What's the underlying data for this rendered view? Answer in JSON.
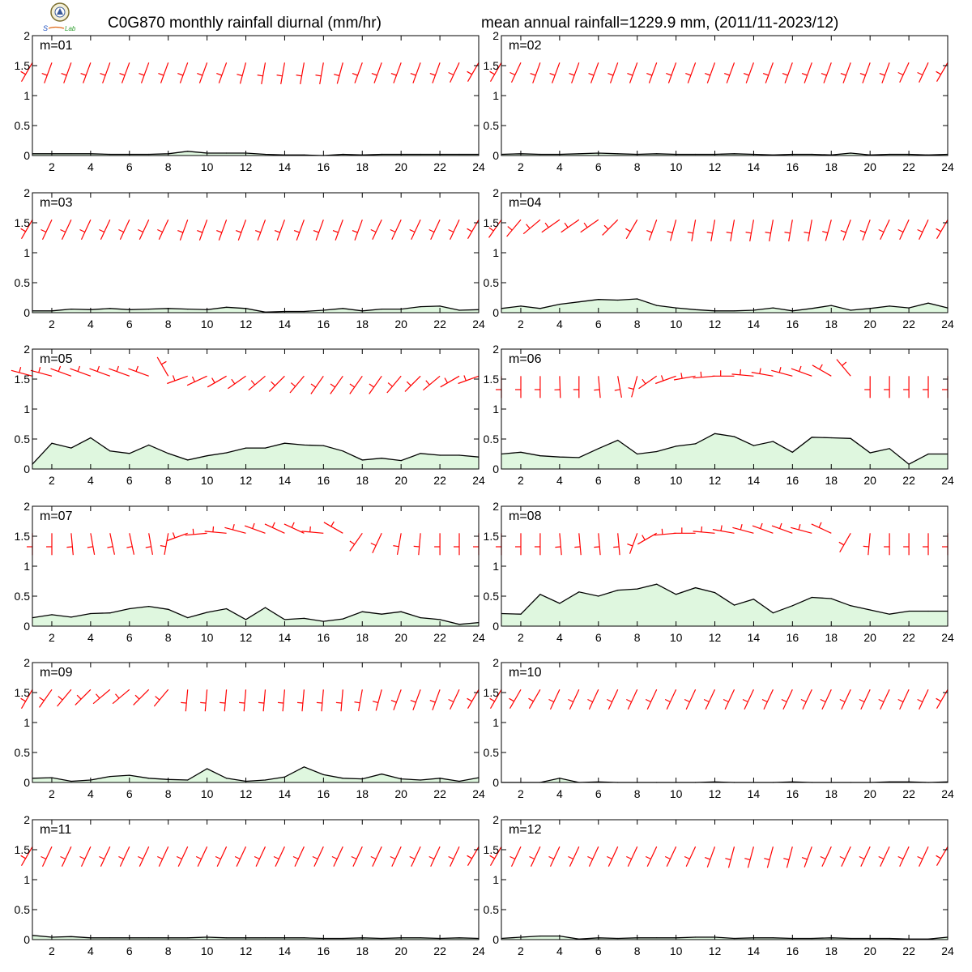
{
  "title_left": "C0G870 monthly rainfall diurnal (mm/hr)",
  "title_right": "mean annual rainfall=1229.9 mm, (2011/11-2023/12)",
  "logo_text": "Lab",
  "colors": {
    "line": "#000000",
    "fill": "#dff7df",
    "barb": "#ff0000",
    "axis": "#000000"
  },
  "chart_data": [
    {
      "type": "area",
      "label": "m=01",
      "x": [
        1,
        2,
        3,
        4,
        5,
        6,
        7,
        8,
        9,
        10,
        11,
        12,
        13,
        14,
        15,
        16,
        17,
        18,
        19,
        20,
        21,
        22,
        23,
        24
      ],
      "ylim": [
        0,
        2
      ],
      "yticks": [
        0,
        0.5,
        1,
        1.5,
        2
      ],
      "xticks": [
        2,
        4,
        6,
        8,
        10,
        12,
        14,
        16,
        18,
        20,
        22,
        24
      ],
      "values": [
        0.03,
        0.03,
        0.03,
        0.03,
        0.02,
        0.02,
        0.02,
        0.03,
        0.07,
        0.04,
        0.04,
        0.04,
        0.02,
        0.01,
        0.01,
        0.0,
        0.02,
        0.01,
        0.02,
        0.02,
        0.02,
        0.02,
        0.02,
        0.02
      ],
      "wind_dir": [
        210,
        200,
        200,
        200,
        200,
        200,
        200,
        200,
        200,
        200,
        200,
        195,
        190,
        190,
        190,
        190,
        195,
        200,
        200,
        200,
        200,
        200,
        205,
        210
      ]
    },
    {
      "type": "area",
      "label": "m=02",
      "x": [
        1,
        2,
        3,
        4,
        5,
        6,
        7,
        8,
        9,
        10,
        11,
        12,
        13,
        14,
        15,
        16,
        17,
        18,
        19,
        20,
        21,
        22,
        23,
        24
      ],
      "ylim": [
        0,
        2
      ],
      "yticks": [
        0,
        0.5,
        1,
        1.5,
        2
      ],
      "xticks": [
        2,
        4,
        6,
        8,
        10,
        12,
        14,
        16,
        18,
        20,
        22,
        24
      ],
      "values": [
        0.02,
        0.03,
        0.02,
        0.02,
        0.03,
        0.04,
        0.03,
        0.02,
        0.03,
        0.02,
        0.02,
        0.02,
        0.03,
        0.02,
        0.01,
        0.02,
        0.02,
        0.01,
        0.04,
        0.01,
        0.02,
        0.02,
        0.01,
        0.02
      ],
      "wind_dir": [
        210,
        205,
        200,
        200,
        200,
        200,
        200,
        200,
        200,
        200,
        200,
        200,
        200,
        200,
        200,
        200,
        200,
        200,
        200,
        200,
        200,
        205,
        205,
        210
      ]
    },
    {
      "type": "area",
      "label": "m=03",
      "x": [
        1,
        2,
        3,
        4,
        5,
        6,
        7,
        8,
        9,
        10,
        11,
        12,
        13,
        14,
        15,
        16,
        17,
        18,
        19,
        20,
        21,
        22,
        23,
        24
      ],
      "ylim": [
        0,
        2
      ],
      "yticks": [
        0,
        0.5,
        1,
        1.5,
        2
      ],
      "xticks": [
        2,
        4,
        6,
        8,
        10,
        12,
        14,
        16,
        18,
        20,
        22,
        24
      ],
      "values": [
        0.03,
        0.03,
        0.06,
        0.05,
        0.07,
        0.05,
        0.06,
        0.07,
        0.06,
        0.05,
        0.09,
        0.07,
        0.01,
        0.02,
        0.02,
        0.04,
        0.07,
        0.03,
        0.06,
        0.06,
        0.1,
        0.11,
        0.04,
        0.05
      ],
      "wind_dir": [
        210,
        205,
        205,
        205,
        205,
        205,
        205,
        205,
        200,
        200,
        200,
        200,
        200,
        200,
        200,
        200,
        200,
        200,
        205,
        205,
        205,
        205,
        205,
        210
      ]
    },
    {
      "type": "area",
      "label": "m=04",
      "x": [
        1,
        2,
        3,
        4,
        5,
        6,
        7,
        8,
        9,
        10,
        11,
        12,
        13,
        14,
        15,
        16,
        17,
        18,
        19,
        20,
        21,
        22,
        23,
        24
      ],
      "ylim": [
        0,
        2
      ],
      "yticks": [
        0,
        0.5,
        1,
        1.5,
        2
      ],
      "xticks": [
        2,
        4,
        6,
        8,
        10,
        12,
        14,
        16,
        18,
        20,
        22,
        24
      ],
      "values": [
        0.07,
        0.11,
        0.07,
        0.14,
        0.18,
        0.22,
        0.21,
        0.23,
        0.12,
        0.08,
        0.05,
        0.03,
        0.03,
        0.04,
        0.08,
        0.03,
        0.07,
        0.12,
        0.04,
        0.07,
        0.11,
        0.08,
        0.16,
        0.08
      ],
      "wind_dir": [
        215,
        220,
        230,
        235,
        235,
        235,
        225,
        210,
        200,
        195,
        190,
        190,
        190,
        190,
        190,
        190,
        190,
        195,
        200,
        200,
        205,
        205,
        205,
        210
      ]
    },
    {
      "type": "area",
      "label": "m=05",
      "x": [
        1,
        2,
        3,
        4,
        5,
        6,
        7,
        8,
        9,
        10,
        11,
        12,
        13,
        14,
        15,
        16,
        17,
        18,
        19,
        20,
        21,
        22,
        23,
        24
      ],
      "ylim": [
        0,
        2
      ],
      "yticks": [
        0,
        0.5,
        1,
        1.5,
        2
      ],
      "xticks": [
        2,
        4,
        6,
        8,
        10,
        12,
        14,
        16,
        18,
        20,
        22,
        24
      ],
      "values": [
        0.08,
        0.43,
        0.35,
        0.52,
        0.3,
        0.26,
        0.4,
        0.26,
        0.15,
        0.22,
        0.27,
        0.35,
        0.35,
        0.43,
        0.4,
        0.39,
        0.3,
        0.15,
        0.18,
        0.14,
        0.26,
        0.23,
        0.23,
        0.2
      ],
      "wind_dir": [
        285,
        285,
        290,
        290,
        290,
        290,
        290,
        330,
        250,
        245,
        240,
        235,
        230,
        225,
        220,
        215,
        215,
        215,
        215,
        220,
        225,
        230,
        240,
        250
      ]
    },
    {
      "type": "area",
      "label": "m=06",
      "x": [
        1,
        2,
        3,
        4,
        5,
        6,
        7,
        8,
        9,
        10,
        11,
        12,
        13,
        14,
        15,
        16,
        17,
        18,
        19,
        20,
        21,
        22,
        23,
        24
      ],
      "ylim": [
        0,
        2
      ],
      "yticks": [
        0,
        0.5,
        1,
        1.5,
        2
      ],
      "xticks": [
        2,
        4,
        6,
        8,
        10,
        12,
        14,
        16,
        18,
        20,
        22,
        24
      ],
      "values": [
        0.25,
        0.28,
        0.22,
        0.2,
        0.19,
        0.34,
        0.48,
        0.25,
        0.29,
        0.38,
        0.42,
        0.59,
        0.54,
        0.39,
        0.46,
        0.28,
        0.53,
        0.52,
        0.51,
        0.27,
        0.34,
        0.08,
        0.25,
        0.25
      ],
      "wind_dir": [
        180,
        180,
        180,
        178,
        180,
        175,
        170,
        195,
        235,
        250,
        260,
        265,
        270,
        275,
        280,
        285,
        290,
        300,
        320,
        180,
        180,
        180,
        180,
        180
      ],
      "note": "first barb small"
    },
    {
      "type": "area",
      "label": "m=07",
      "x": [
        1,
        2,
        3,
        4,
        5,
        6,
        7,
        8,
        9,
        10,
        11,
        12,
        13,
        14,
        15,
        16,
        17,
        18,
        19,
        20,
        21,
        22,
        23,
        24
      ],
      "ylim": [
        0,
        2
      ],
      "yticks": [
        0,
        0.5,
        1,
        1.5,
        2
      ],
      "xticks": [
        2,
        4,
        6,
        8,
        10,
        12,
        14,
        16,
        18,
        20,
        22,
        24
      ],
      "values": [
        0.14,
        0.19,
        0.15,
        0.21,
        0.22,
        0.29,
        0.33,
        0.28,
        0.14,
        0.23,
        0.29,
        0.11,
        0.31,
        0.11,
        0.13,
        0.08,
        0.12,
        0.24,
        0.2,
        0.24,
        0.14,
        0.11,
        0.03,
        0.06
      ],
      "wind_dir": [
        180,
        180,
        175,
        170,
        168,
        168,
        170,
        190,
        250,
        265,
        275,
        285,
        290,
        295,
        295,
        275,
        300,
        215,
        205,
        190,
        185,
        180,
        180,
        180
      ]
    },
    {
      "type": "area",
      "label": "m=08",
      "x": [
        1,
        2,
        3,
        4,
        5,
        6,
        7,
        8,
        9,
        10,
        11,
        12,
        13,
        14,
        15,
        16,
        17,
        18,
        19,
        20,
        21,
        22,
        23,
        24
      ],
      "ylim": [
        0,
        2
      ],
      "yticks": [
        0,
        0.5,
        1,
        1.5,
        2
      ],
      "xticks": [
        2,
        4,
        6,
        8,
        10,
        12,
        14,
        16,
        18,
        20,
        22,
        24
      ],
      "values": [
        0.21,
        0.2,
        0.53,
        0.38,
        0.57,
        0.5,
        0.6,
        0.62,
        0.7,
        0.53,
        0.64,
        0.56,
        0.35,
        0.45,
        0.22,
        0.34,
        0.48,
        0.46,
        0.34,
        0.27,
        0.2,
        0.25,
        0.25,
        0.25
      ],
      "wind_dir": [
        180,
        180,
        180,
        175,
        175,
        175,
        175,
        200,
        240,
        265,
        270,
        275,
        280,
        285,
        290,
        290,
        285,
        295,
        210,
        185,
        180,
        180,
        180,
        180
      ]
    },
    {
      "type": "area",
      "label": "m=09",
      "x": [
        1,
        2,
        3,
        4,
        5,
        6,
        7,
        8,
        9,
        10,
        11,
        12,
        13,
        14,
        15,
        16,
        17,
        18,
        19,
        20,
        21,
        22,
        23,
        24
      ],
      "ylim": [
        0,
        2
      ],
      "yticks": [
        0,
        0.5,
        1,
        1.5,
        2
      ],
      "xticks": [
        2,
        4,
        6,
        8,
        10,
        12,
        14,
        16,
        18,
        20,
        22,
        24
      ],
      "values": [
        0.07,
        0.08,
        0.02,
        0.04,
        0.1,
        0.12,
        0.07,
        0.05,
        0.04,
        0.23,
        0.07,
        0.02,
        0.04,
        0.09,
        0.26,
        0.13,
        0.07,
        0.06,
        0.14,
        0.06,
        0.04,
        0.07,
        0.02,
        0.08
      ],
      "wind_dir": [
        210,
        215,
        220,
        225,
        230,
        230,
        225,
        220,
        185,
        185,
        185,
        185,
        185,
        185,
        185,
        185,
        185,
        190,
        195,
        200,
        200,
        200,
        205,
        210
      ]
    },
    {
      "type": "area",
      "label": "m=10",
      "x": [
        1,
        2,
        3,
        4,
        5,
        6,
        7,
        8,
        9,
        10,
        11,
        12,
        13,
        14,
        15,
        16,
        17,
        18,
        19,
        20,
        21,
        22,
        23,
        24
      ],
      "ylim": [
        0,
        2
      ],
      "yticks": [
        0,
        0.5,
        1,
        1.5,
        2
      ],
      "xticks": [
        2,
        4,
        6,
        8,
        10,
        12,
        14,
        16,
        18,
        20,
        22,
        24
      ],
      "values": [
        0.0,
        0.0,
        0.0,
        0.07,
        0.0,
        0.01,
        0.0,
        0.0,
        0.0,
        0.0,
        0.0,
        0.01,
        0.0,
        0.0,
        0.0,
        0.01,
        0.0,
        0.0,
        0.0,
        0.0,
        0.01,
        0.01,
        0.0,
        0.01
      ],
      "wind_dir": [
        210,
        210,
        210,
        205,
        205,
        205,
        205,
        205,
        205,
        205,
        205,
        205,
        205,
        205,
        205,
        205,
        205,
        205,
        205,
        205,
        205,
        205,
        205,
        210
      ]
    },
    {
      "type": "area",
      "label": "m=11",
      "x": [
        1,
        2,
        3,
        4,
        5,
        6,
        7,
        8,
        9,
        10,
        11,
        12,
        13,
        14,
        15,
        16,
        17,
        18,
        19,
        20,
        21,
        22,
        23,
        24
      ],
      "ylim": [
        0,
        2
      ],
      "yticks": [
        0,
        0.5,
        1,
        1.5,
        2
      ],
      "xticks": [
        2,
        4,
        6,
        8,
        10,
        12,
        14,
        16,
        18,
        20,
        22,
        24
      ],
      "values": [
        0.07,
        0.04,
        0.05,
        0.03,
        0.03,
        0.03,
        0.03,
        0.03,
        0.03,
        0.04,
        0.03,
        0.03,
        0.03,
        0.03,
        0.03,
        0.02,
        0.02,
        0.03,
        0.02,
        0.03,
        0.03,
        0.02,
        0.03,
        0.02
      ],
      "wind_dir": [
        210,
        205,
        205,
        205,
        205,
        205,
        205,
        205,
        205,
        205,
        205,
        205,
        205,
        205,
        205,
        205,
        205,
        205,
        205,
        205,
        205,
        205,
        205,
        210
      ]
    },
    {
      "type": "area",
      "label": "m=12",
      "x": [
        1,
        2,
        3,
        4,
        5,
        6,
        7,
        8,
        9,
        10,
        11,
        12,
        13,
        14,
        15,
        16,
        17,
        18,
        19,
        20,
        21,
        22,
        23,
        24
      ],
      "ylim": [
        0,
        2
      ],
      "yticks": [
        0,
        0.5,
        1,
        1.5,
        2
      ],
      "xticks": [
        2,
        4,
        6,
        8,
        10,
        12,
        14,
        16,
        18,
        20,
        22,
        24
      ],
      "values": [
        0.02,
        0.04,
        0.06,
        0.06,
        0.01,
        0.03,
        0.02,
        0.03,
        0.03,
        0.03,
        0.04,
        0.04,
        0.02,
        0.03,
        0.03,
        0.02,
        0.02,
        0.03,
        0.02,
        0.02,
        0.02,
        0.01,
        0.01,
        0.04
      ],
      "wind_dir": [
        210,
        205,
        205,
        205,
        205,
        205,
        205,
        205,
        205,
        205,
        205,
        200,
        195,
        195,
        195,
        195,
        200,
        205,
        205,
        205,
        205,
        205,
        205,
        210
      ]
    }
  ]
}
